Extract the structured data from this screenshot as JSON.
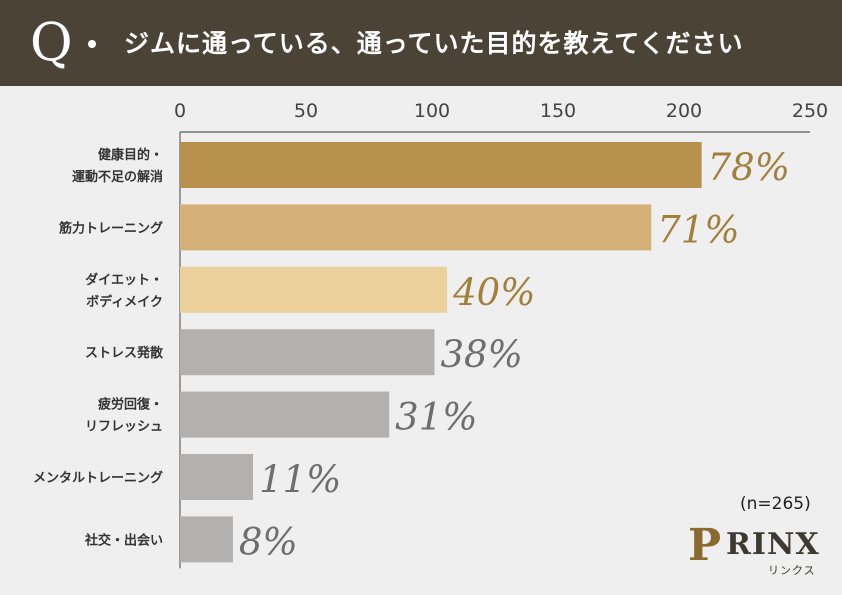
{
  "header": {
    "q_mark": "Q",
    "question": "ジムに通っている、通っていた目的を教えてください"
  },
  "sample_note": "(n=265)",
  "logo": {
    "name": "RINX",
    "sub": "リンクス"
  },
  "colors": {
    "header_bg": "#4b4336",
    "top1": "#b8914f",
    "top2": "#d6b079",
    "top3": "#ecd09b",
    "rest": "#b3b1b0",
    "pct_gold": "#a37f3c",
    "pct_gray": "#6e6e6e"
  },
  "chart_data": {
    "type": "bar",
    "orientation": "horizontal",
    "xlim": [
      0,
      250
    ],
    "xticks": [
      "0",
      "50",
      "100",
      "150",
      "200",
      "250"
    ],
    "grid": false,
    "categories": [
      [
        "健康目的・",
        "運動不足の解消"
      ],
      [
        "筋力トレーニング"
      ],
      [
        "ダイエット・",
        "ボディメイク"
      ],
      [
        "ストレス発散"
      ],
      [
        "疲労回復・",
        "リフレッシュ"
      ],
      [
        "メンタルトレーニング"
      ],
      [
        "社交・出会い"
      ]
    ],
    "values": [
      207,
      187,
      106,
      101,
      83,
      29,
      21
    ],
    "percent_labels": [
      "78%",
      "71%",
      "40%",
      "38%",
      "31%",
      "11%",
      "8%"
    ]
  }
}
